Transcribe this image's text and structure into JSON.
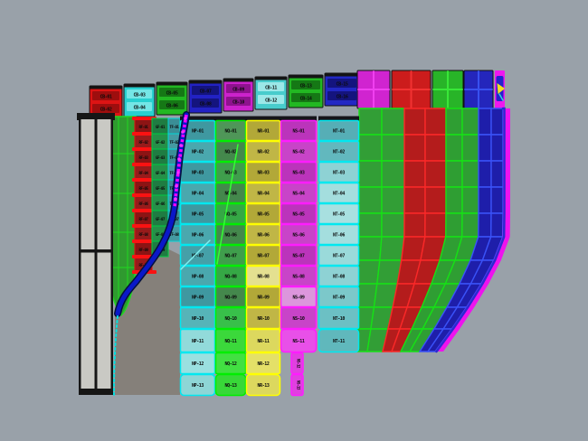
{
  "viewport": {
    "background": "#99a1a9",
    "shadow_color": "#85807a",
    "mast_color": "#c9c9c4",
    "curve_color": "#0a18c8",
    "curve_overlay_color": "#ff00ff",
    "arrow_marker_color": "#f0e020"
  },
  "cap_row": {
    "blocks": [
      {
        "name": "cap-red",
        "body": "#dd1414",
        "bar": "#9e0e0e",
        "labels": [
          "CB-01",
          "CB-02"
        ]
      },
      {
        "name": "cap-cyan",
        "body": "#28d0d0",
        "bar": "#74e6e6",
        "labels": [
          "CB-03",
          "CB-04"
        ]
      },
      {
        "name": "cap-green",
        "body": "#22b822",
        "bar": "#157815",
        "labels": [
          "CB-05",
          "CB-06"
        ]
      },
      {
        "name": "cap-blue",
        "body": "#2222c4",
        "bar": "#14147e",
        "labels": [
          "CB-07",
          "CB-08"
        ]
      },
      {
        "name": "cap-magenta",
        "body": "#cc22cc",
        "bar": "#8e128e",
        "labels": [
          "CB-09",
          "CB-10"
        ]
      },
      {
        "name": "cap-cyan-2",
        "body": "#48cccc",
        "bar": "#9ce8e8",
        "labels": [
          "CB-11",
          "CB-12"
        ]
      },
      {
        "name": "cap-green-2",
        "body": "#22b822",
        "bar": "#157815",
        "labels": [
          "CB-13",
          "CB-14"
        ]
      },
      {
        "name": "cap-blue-2",
        "body": "#2228c4",
        "bar": "#14147e",
        "labels": [
          "CB-15",
          "CB-16"
        ]
      }
    ],
    "grid_blocks": [
      {
        "name": "cap-magenta-grid",
        "body": "#d024d0",
        "line": "#f040f0"
      },
      {
        "name": "cap-red-grid",
        "body": "#cc1c1c",
        "line": "#f23232"
      },
      {
        "name": "cap-green-grid",
        "body": "#28b428",
        "line": "#38e838"
      },
      {
        "name": "cap-blue-grid",
        "body": "#2426bc",
        "line": "#3850f0"
      }
    ]
  },
  "back_strips": [
    {
      "name": "strip-red",
      "fill": "#8c1414",
      "alt": "#981b1b",
      "border": "#e01010",
      "tab": "#fa1212",
      "labels": [
        "RF-01",
        "RF-02",
        "RF-03",
        "RF-04",
        "RF-05",
        "RF-06",
        "RF-07",
        "RF-08",
        "RF-09",
        "RF-10"
      ]
    },
    {
      "name": "strip-dark-green",
      "fill": "#1f7c42",
      "alt": "#259048",
      "border": "#00cc44",
      "tab": null,
      "labels": [
        "GF-01",
        "GF-02",
        "GF-03",
        "GF-04",
        "GF-05",
        "GF-06",
        "GF-07",
        "GF-08",
        "GF-09"
      ]
    },
    {
      "name": "strip-teal",
      "fill": "#3a8e96",
      "alt": "#449aa2",
      "border": "#00d8d8",
      "tab": null,
      "labels": [
        "TF-01",
        "TF-02",
        "TF-03",
        "TF-04",
        "TF-05",
        "TF-06",
        "TF-07",
        "TF-08"
      ]
    }
  ],
  "panel_columns": [
    {
      "name": "column-cyan",
      "border": "#00e8f0",
      "shades": [
        "#3f98a0",
        "#4aa8ae",
        "#3f98a0",
        "#4aa8ae",
        "#3f98a0",
        "#4aa8ae",
        "#45a0a8",
        "#4aa8ae",
        "#3f98a0",
        "#56b4b8",
        "#92dada",
        "#9ae0e0",
        "#8ed6d6"
      ],
      "labels": [
        "NP-01",
        "NP-02",
        "NP-03",
        "NP-04",
        "NP-05",
        "NP-06",
        "NP-07",
        "NP-08",
        "NP-09",
        "NP-10",
        "NP-11",
        "NP-12",
        "NP-13"
      ]
    },
    {
      "name": "column-green",
      "border": "#00ee00",
      "shades": [
        "#4f9658",
        "#44884c",
        "#3f9e4c",
        "#44884c",
        "#35a845",
        "#44884c",
        "#3f9e4c",
        "#35a845",
        "#44884c",
        "#38c04a",
        "#3bd83b",
        "#42e042",
        "#38d838"
      ],
      "labels": [
        "NQ-01",
        "NQ-02",
        "NQ-03",
        "NQ-04",
        "NQ-05",
        "NQ-06",
        "NQ-07",
        "NQ-08",
        "NQ-09",
        "NQ-10",
        "NQ-11",
        "NQ-12",
        "NQ-13"
      ]
    },
    {
      "name": "column-yellow",
      "border": "#ffff00",
      "shades": [
        "#b2a838",
        "#c0b646",
        "#b2a838",
        "#c0b646",
        "#b2a838",
        "#c0b646",
        "#b2a838",
        "#e4e090",
        "#b2a838",
        "#c0b646",
        "#dcd85e",
        "#e4e068",
        "#dcd85e"
      ],
      "labels": [
        "NR-01",
        "NR-02",
        "NR-03",
        "NR-04",
        "NR-05",
        "NR-06",
        "NR-07",
        "NR-08",
        "NR-09",
        "NR-10",
        "NR-11",
        "NR-12",
        "NR-13"
      ]
    },
    {
      "name": "column-magenta",
      "border": "#ff1cff",
      "shades": [
        "#bb34bb",
        "#c844c8",
        "#bb34bb",
        "#c844c8",
        "#bb34bb",
        "#c844c8",
        "#bb34bb",
        "#c844c8",
        "#dc96dc",
        "#c844c8",
        "#e850e8"
      ],
      "labels": [
        "NS-01",
        "NS-02",
        "NS-03",
        "NS-04",
        "NS-05",
        "NS-06",
        "NS-07",
        "NS-08",
        "NS-09",
        "NS-10",
        "NS-11"
      ],
      "tab_labels": [
        "NS-12",
        "NS-13"
      ],
      "tab_fill": "#e040e0"
    },
    {
      "name": "column-cyan-2",
      "border": "#00e8f0",
      "shades": [
        "#56aeb6",
        "#62b8be",
        "#8ed2d4",
        "#a4dede",
        "#a8e0e0",
        "#a4dede",
        "#9adada",
        "#8ed2d4",
        "#7cc8ca",
        "#6cc0c4",
        "#60b8bc"
      ],
      "labels": [
        "NT-01",
        "NT-02",
        "NT-03",
        "NT-04",
        "NT-05",
        "NT-06",
        "NT-07",
        "NT-08",
        "NT-09",
        "NT-10",
        "NT-11"
      ]
    }
  ],
  "hull_bands": [
    {
      "name": "band-green-wide",
      "fill": "#329e36",
      "line": "#16e016"
    },
    {
      "name": "band-red",
      "fill": "#b41c1c",
      "line": "#fa2828"
    },
    {
      "name": "band-green-2",
      "fill": "#2f9e33",
      "line": "#16e016"
    },
    {
      "name": "band-blue",
      "fill": "#1e1eaa",
      "line": "#3a52f8"
    },
    {
      "name": "band-rim",
      "fill": "#ee12ee",
      "line": "#2a2ad0"
    }
  ]
}
